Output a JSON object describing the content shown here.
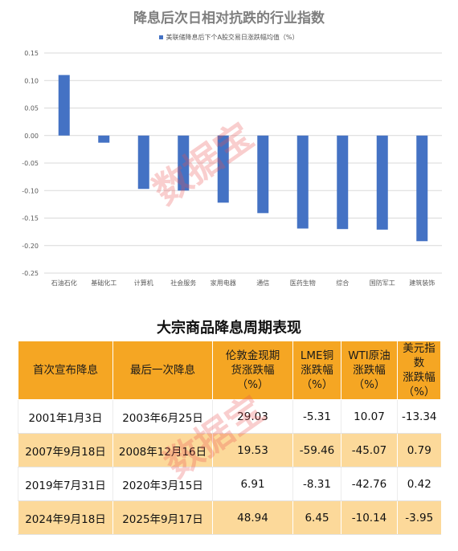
{
  "chart_data": {
    "type": "bar",
    "title": "降息后次日相对抗跌的行业指数",
    "legend": "美联储降息后下个A股交易日涨跌幅均值（%）",
    "categories": [
      "石油石化",
      "基础化工",
      "计算机",
      "社会服务",
      "家用电器",
      "通信",
      "医药生物",
      "综合",
      "国防军工",
      "建筑装饰"
    ],
    "series": [
      {
        "name": "美联储降息后下个A股交易日涨跌幅均值（%）",
        "values": [
          0.11,
          -0.013,
          -0.097,
          -0.1,
          -0.122,
          -0.141,
          -0.169,
          -0.17,
          -0.171,
          -0.192
        ]
      }
    ],
    "ylim": [
      -0.25,
      0.15
    ],
    "yticks": [
      "0.15",
      "0.10",
      "0.05",
      "0.00",
      "-0.05",
      "-0.10",
      "-0.15",
      "-0.20",
      "-0.25"
    ],
    "ytick_values": [
      0.15,
      0.1,
      0.05,
      0.0,
      -0.05,
      -0.1,
      -0.15,
      -0.2,
      -0.25
    ],
    "grid": true,
    "bar_color": "#4472c4"
  },
  "table": {
    "title": "大宗商品降息周期表现",
    "headers": [
      "首次宣布降息",
      "最后一次降息",
      "伦敦金现期\n货涨跌幅\n（%）",
      "LME铜\n涨跌幅\n（%）",
      "WTI原油\n涨跌幅\n（%）",
      "美元指数\n涨跌幅\n（%）"
    ],
    "rows": [
      [
        "2001年1月3日",
        "2003年6月25日",
        "29.03",
        "-5.31",
        "10.07",
        "-13.34"
      ],
      [
        "2007年9月18日",
        "2008年12月16日",
        "19.53",
        "-59.46",
        "-45.07",
        "0.79"
      ],
      [
        "2019年7月31日",
        "2020年3月15日",
        "6.91",
        "-8.31",
        "-42.76",
        "0.42"
      ],
      [
        "2024年9月18日",
        "2025年9月17日",
        "48.94",
        "6.45",
        "-10.14",
        "-3.95"
      ]
    ],
    "header_color": "#f5a623",
    "stripe_color": "#fcd99a"
  },
  "watermark": "数据宝"
}
